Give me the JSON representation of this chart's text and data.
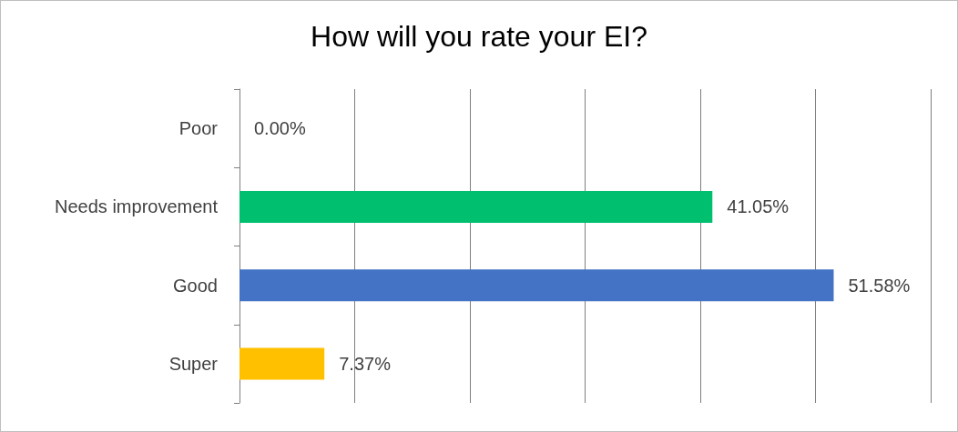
{
  "chart_data": {
    "type": "bar",
    "orientation": "horizontal",
    "title": "How will you rate your EI?",
    "categories": [
      "Poor",
      "Needs improvement",
      "Good",
      "Super"
    ],
    "values": [
      0,
      41.05,
      51.58,
      7.37
    ],
    "colors": [
      "#ed7d31",
      "#00bf6f",
      "#4472c4",
      "#ffc000"
    ],
    "value_labels": [
      "0.00%",
      "41.05%",
      "51.58%",
      "7.37%"
    ],
    "xlim": [
      0,
      60
    ],
    "xticks": [
      {
        "value": 0,
        "label": null
      },
      {
        "value": 10,
        "label": null
      },
      {
        "value": 20,
        "label": null
      },
      {
        "value": 30,
        "label": null
      },
      {
        "value": 40,
        "label": null
      },
      {
        "value": 50,
        "label": null
      },
      {
        "value": 60,
        "label": null
      }
    ],
    "grid": "x",
    "tick_labels": "y"
  }
}
